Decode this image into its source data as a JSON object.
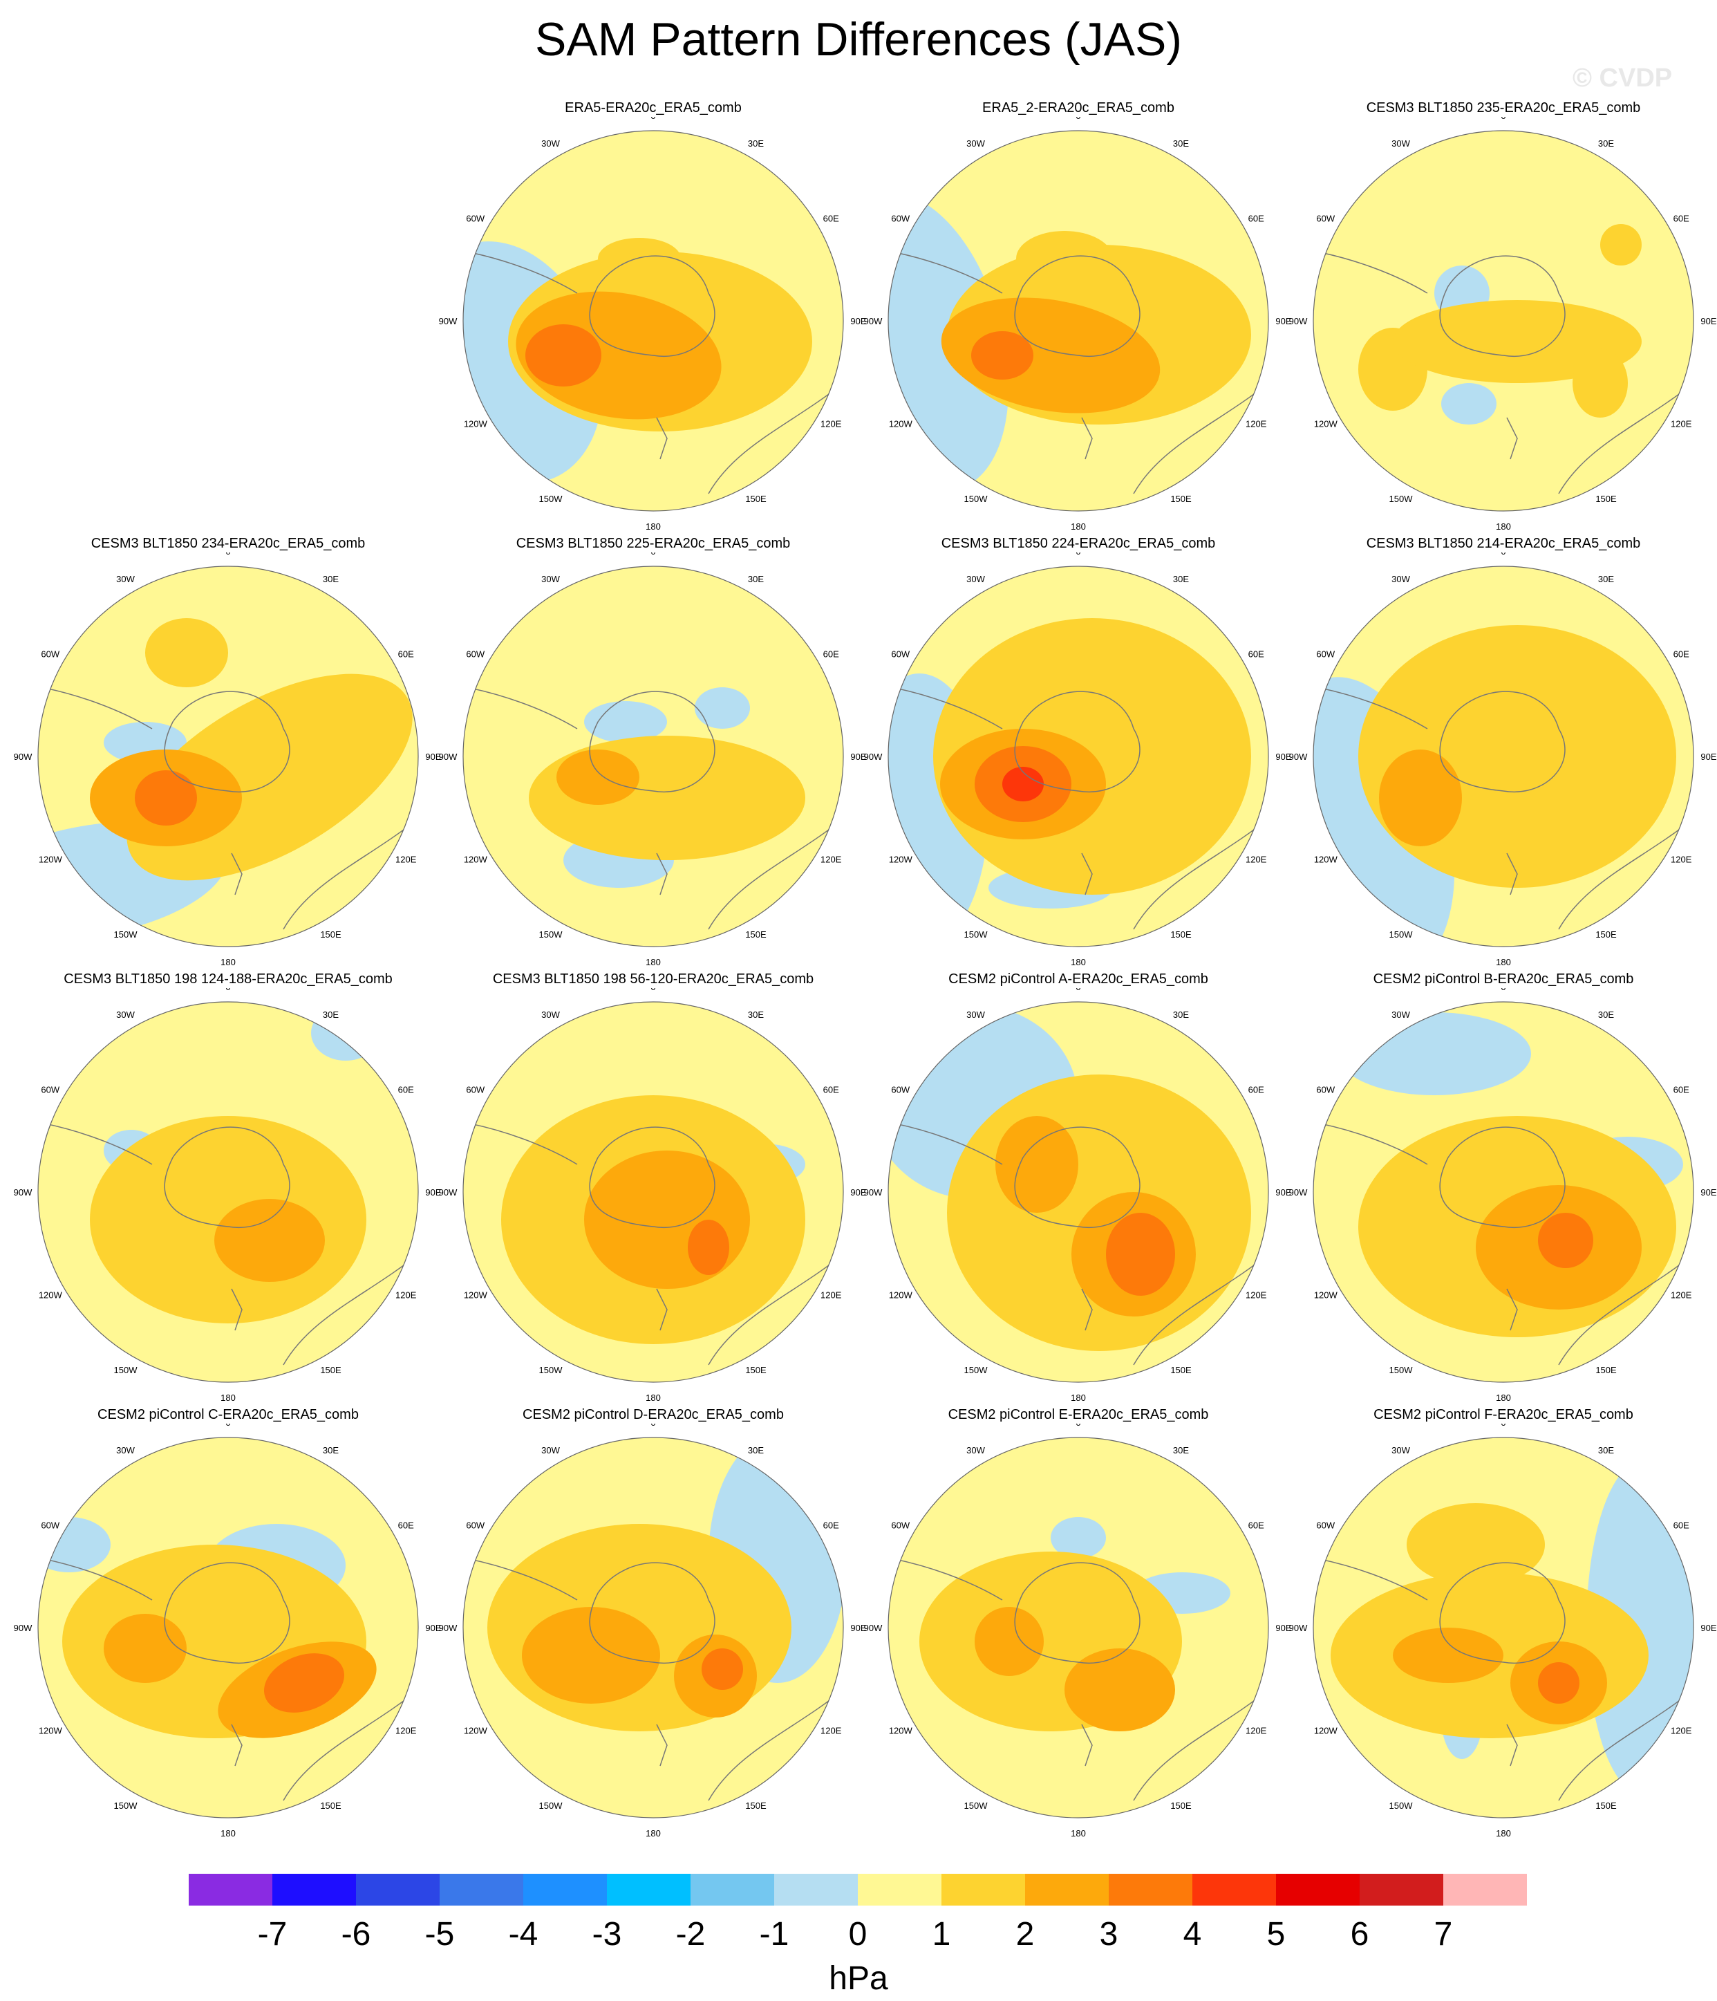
{
  "title": "SAM Pattern Differences (JAS)",
  "watermark": "© CVDP",
  "units": "hPa",
  "projection": "south-polar-stereographic",
  "lon_labels": [
    "0",
    "30E",
    "60E",
    "90E",
    "120E",
    "150E",
    "180",
    "150W",
    "120W",
    "90W",
    "60W",
    "30W"
  ],
  "panels": [
    {
      "title": "ERA5-ERA20c_ERA5_comb",
      "background_level": 1,
      "max_level": 4
    },
    {
      "title": "ERA5_2-ERA20c_ERA5_comb",
      "background_level": 1,
      "max_level": 4
    },
    {
      "title": "CESM3 BLT1850 235-ERA20c_ERA5_comb",
      "background_level": 1,
      "max_level": 2
    },
    {
      "title": "CESM3 BLT1850 234-ERA20c_ERA5_comb",
      "background_level": 1,
      "max_level": 4
    },
    {
      "title": "CESM3 BLT1850 225-ERA20c_ERA5_comb",
      "background_level": 1,
      "max_level": 3
    },
    {
      "title": "CESM3 BLT1850 224-ERA20c_ERA5_comb",
      "background_level": 1,
      "max_level": 5
    },
    {
      "title": "CESM3 BLT1850 214-ERA20c_ERA5_comb",
      "background_level": 1,
      "max_level": 3
    },
    {
      "title": "CESM3 BLT1850 198 124-188-ERA20c_ERA5_comb",
      "background_level": 1,
      "max_level": 3
    },
    {
      "title": "CESM3 BLT1850 198 56-120-ERA20c_ERA5_comb",
      "background_level": 1,
      "max_level": 4
    },
    {
      "title": "CESM2 piControl A-ERA20c_ERA5_comb",
      "background_level": 1,
      "max_level": 4
    },
    {
      "title": "CESM2 piControl B-ERA20c_ERA5_comb",
      "background_level": 1,
      "max_level": 4
    },
    {
      "title": "CESM2 piControl C-ERA20c_ERA5_comb",
      "background_level": 1,
      "max_level": 4
    },
    {
      "title": "CESM2 piControl D-ERA20c_ERA5_comb",
      "background_level": 1,
      "max_level": 4
    },
    {
      "title": "CESM2 piControl E-ERA20c_ERA5_comb",
      "background_level": 1,
      "max_level": 3
    },
    {
      "title": "CESM2 piControl F-ERA20c_ERA5_comb",
      "background_level": 1,
      "max_level": 4
    }
  ],
  "colorbar": {
    "labels": [
      "-7",
      "-6",
      "-5",
      "-4",
      "-3",
      "-2",
      "-1",
      "0",
      "1",
      "2",
      "3",
      "4",
      "5",
      "6",
      "7"
    ],
    "colors": [
      "#8a2be2",
      "#1e0eff",
      "#2c46e6",
      "#3a78ea",
      "#1e90ff",
      "#00bfff",
      "#74c7f0",
      "#b5def2",
      "#fff894",
      "#fdd330",
      "#fda90c",
      "#fd7a0a",
      "#fd360a",
      "#e60000",
      "#d21d1d",
      "#ffb6b6"
    ]
  }
}
